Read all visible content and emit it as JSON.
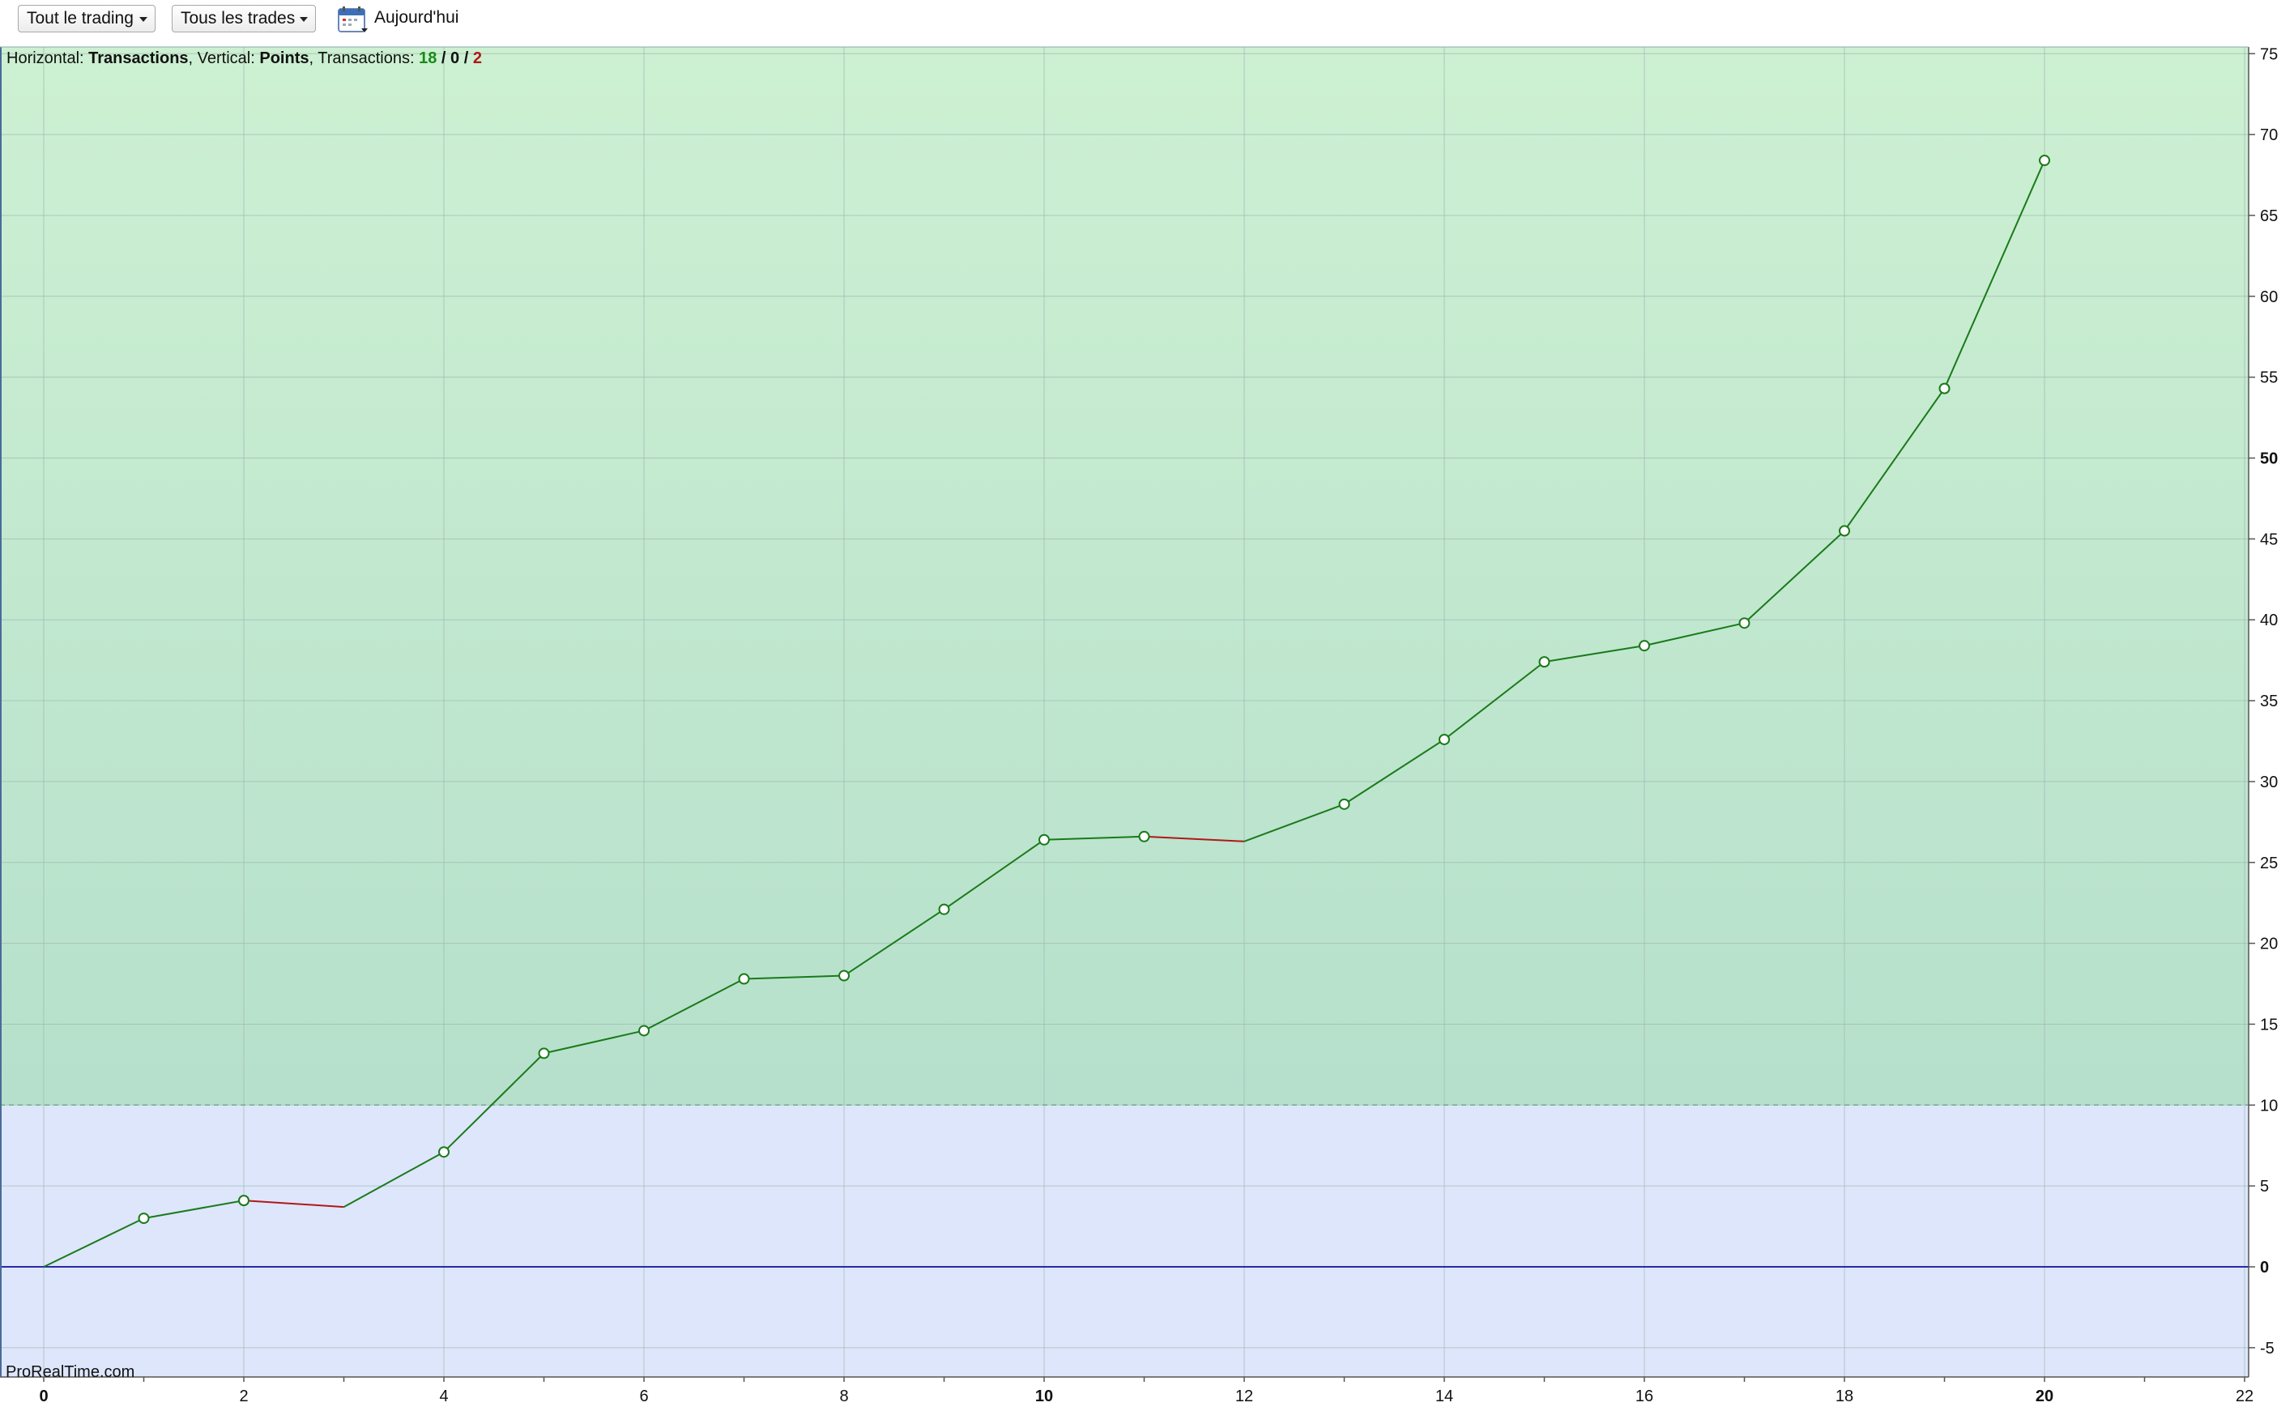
{
  "toolbar": {
    "scope_dropdown": "Tout le trading",
    "trades_dropdown": "Tous les trades",
    "date_label": "Aujourd'hui",
    "calendar_icon": "calendar-icon"
  },
  "info_bar": {
    "horizontal_label": "Horizontal: ",
    "horizontal_value": "Transactions",
    "sep1": ", Vertical: ",
    "vertical_value": "Points",
    "sep2": ", Transactions: ",
    "wins": "18",
    "slash1": " / ",
    "neutral": "0",
    "slash2": " / ",
    "losses": "2"
  },
  "watermark": "ProRealTime.com",
  "colors": {
    "gain_line": "#1a7a1a",
    "loss_line": "#b01818",
    "upper_zone": "#c8eccd",
    "lower_zone": "#dde6fb",
    "zero_line": "#2a2aa8",
    "win_count": "#1a8a1a",
    "loss_count": "#b01818"
  },
  "chart_data": {
    "type": "line",
    "x": [
      0,
      1,
      2,
      3,
      4,
      5,
      6,
      7,
      8,
      9,
      10,
      11,
      12,
      13,
      14,
      15,
      16,
      17,
      18,
      19,
      20
    ],
    "y": [
      0,
      3,
      4.1,
      3.7,
      7.1,
      13.2,
      14.6,
      17.8,
      18.0,
      22.1,
      26.4,
      26.6,
      26.3,
      28.6,
      32.6,
      37.4,
      38.4,
      39.8,
      45.5,
      54.3,
      68.4
    ],
    "markers": [
      false,
      true,
      true,
      false,
      true,
      true,
      true,
      true,
      true,
      true,
      true,
      true,
      false,
      true,
      true,
      true,
      true,
      true,
      true,
      true,
      true
    ],
    "xlim": [
      0,
      22
    ],
    "ylim": [
      -7,
      76
    ],
    "x_ticks": [
      0,
      2,
      4,
      6,
      8,
      10,
      12,
      14,
      16,
      18,
      20,
      22
    ],
    "x_ticks_bold": [
      0,
      10,
      20
    ],
    "y_ticks": [
      -5,
      0,
      5,
      10,
      15,
      20,
      25,
      30,
      35,
      40,
      45,
      50,
      55,
      60,
      65,
      70,
      75
    ],
    "y_ticks_bold": [
      0,
      50
    ],
    "zone_threshold": 10,
    "xlabel": "Transactions",
    "ylabel": "Points",
    "grid": true
  }
}
